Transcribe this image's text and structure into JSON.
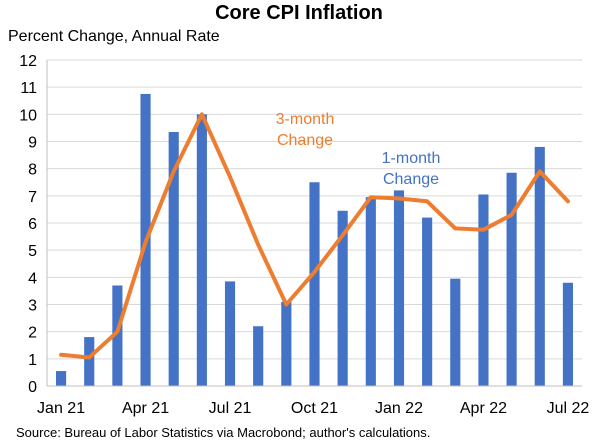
{
  "chart_data": {
    "type": "bar",
    "title": "Core CPI Inflation",
    "subtitle": "Percent Change, Annual Rate",
    "source": "Source: Bureau of Labor Statistics via Macrobond; author's calculations.",
    "categories": [
      "Jan 21",
      "Feb 21",
      "Mar 21",
      "Apr 21",
      "May 21",
      "Jun 21",
      "Jul 21",
      "Aug 21",
      "Sep 21",
      "Oct 21",
      "Nov 21",
      "Dec 21",
      "Jan 22",
      "Feb 22",
      "Mar 22",
      "Apr 22",
      "May 22",
      "Jun 22",
      "Jul 22"
    ],
    "x_tick_labels": [
      "Jan 21",
      "Apr 21",
      "Jul 21",
      "Oct 21",
      "Jan 22",
      "Apr 22",
      "Jul 22"
    ],
    "x_tick_indices": [
      0,
      3,
      6,
      9,
      12,
      15,
      18
    ],
    "ylim": [
      0,
      12
    ],
    "y_ticks": [
      0,
      1,
      2,
      3,
      4,
      5,
      6,
      7,
      8,
      9,
      10,
      11,
      12
    ],
    "grid": true,
    "series": [
      {
        "name": "1-month Change",
        "type": "bar",
        "color": "#4472C4",
        "values": [
          0.55,
          1.8,
          3.7,
          10.75,
          9.35,
          10.0,
          3.85,
          2.2,
          3.1,
          7.5,
          6.45,
          6.95,
          7.2,
          6.2,
          3.95,
          7.05,
          7.85,
          8.8,
          3.8
        ]
      },
      {
        "name": "3-month Change",
        "type": "line",
        "color": "#ED7D31",
        "values": [
          1.15,
          1.05,
          2.0,
          5.3,
          7.9,
          10.0,
          7.7,
          5.2,
          3.0,
          4.2,
          5.55,
          6.95,
          6.9,
          6.8,
          5.8,
          5.75,
          6.3,
          7.9,
          6.8
        ]
      }
    ],
    "annotations": [
      {
        "lines": [
          "3-month",
          "Change"
        ],
        "series": "3-month Change"
      },
      {
        "lines": [
          "1-month",
          "Change"
        ],
        "series": "1-month Change"
      }
    ]
  }
}
